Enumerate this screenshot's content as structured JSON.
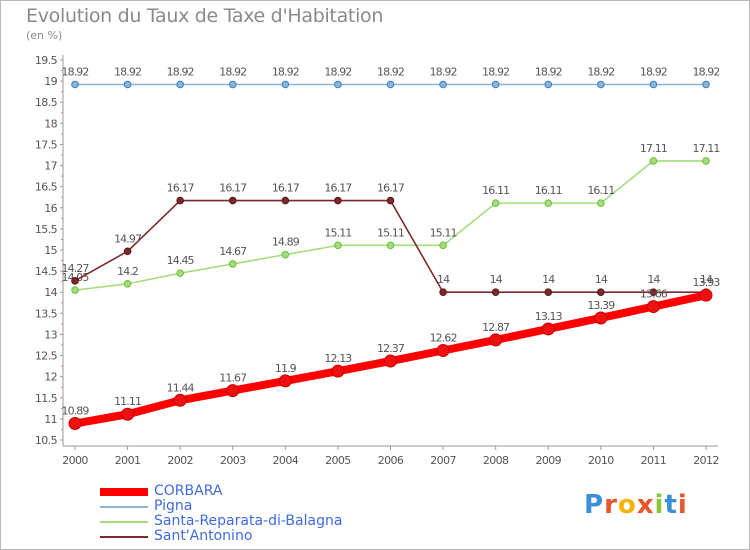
{
  "chart_data": {
    "type": "line",
    "title": "Evolution du Taux de Taxe d'Habitation",
    "subtitle": "(en %)",
    "x": [
      "2000",
      "2001",
      "2002",
      "2003",
      "2004",
      "2005",
      "2006",
      "2007",
      "2008",
      "2009",
      "2010",
      "2011",
      "2012"
    ],
    "ylim": [
      10.5,
      19.5
    ],
    "yticks": [
      "10.5",
      "11",
      "11.5",
      "12",
      "12.5",
      "13",
      "13.5",
      "14",
      "14.5",
      "15",
      "15.5",
      "16",
      "16.5",
      "17",
      "17.5",
      "18",
      "18.5",
      "19",
      "19.5"
    ],
    "grid": false,
    "legend_position": "bottom-left",
    "series": [
      {
        "name": "CORBARA",
        "color": "#ff0000",
        "values": [
          10.89,
          11.11,
          11.44,
          11.67,
          11.9,
          12.13,
          12.37,
          12.62,
          12.87,
          13.13,
          13.39,
          13.66,
          13.93
        ]
      },
      {
        "name": "Pigna",
        "color": "#8db4d9",
        "values": [
          18.92,
          18.92,
          18.92,
          18.92,
          18.92,
          18.92,
          18.92,
          18.92,
          18.92,
          18.92,
          18.92,
          18.92,
          18.92
        ]
      },
      {
        "name": "Santa-Reparata-di-Balagna",
        "color": "#a4dc7c",
        "values": [
          14.05,
          14.2,
          14.45,
          14.67,
          14.89,
          15.11,
          15.11,
          15.11,
          16.11,
          16.11,
          16.11,
          17.11,
          17.11
        ]
      },
      {
        "name": "Sant'Antonino",
        "color": "#7a2a2a",
        "values": [
          14.27,
          14.97,
          16.17,
          16.17,
          16.17,
          16.17,
          16.17,
          14,
          14,
          14,
          14,
          14,
          14
        ]
      }
    ]
  },
  "logo": {
    "text": "Proxiti"
  }
}
